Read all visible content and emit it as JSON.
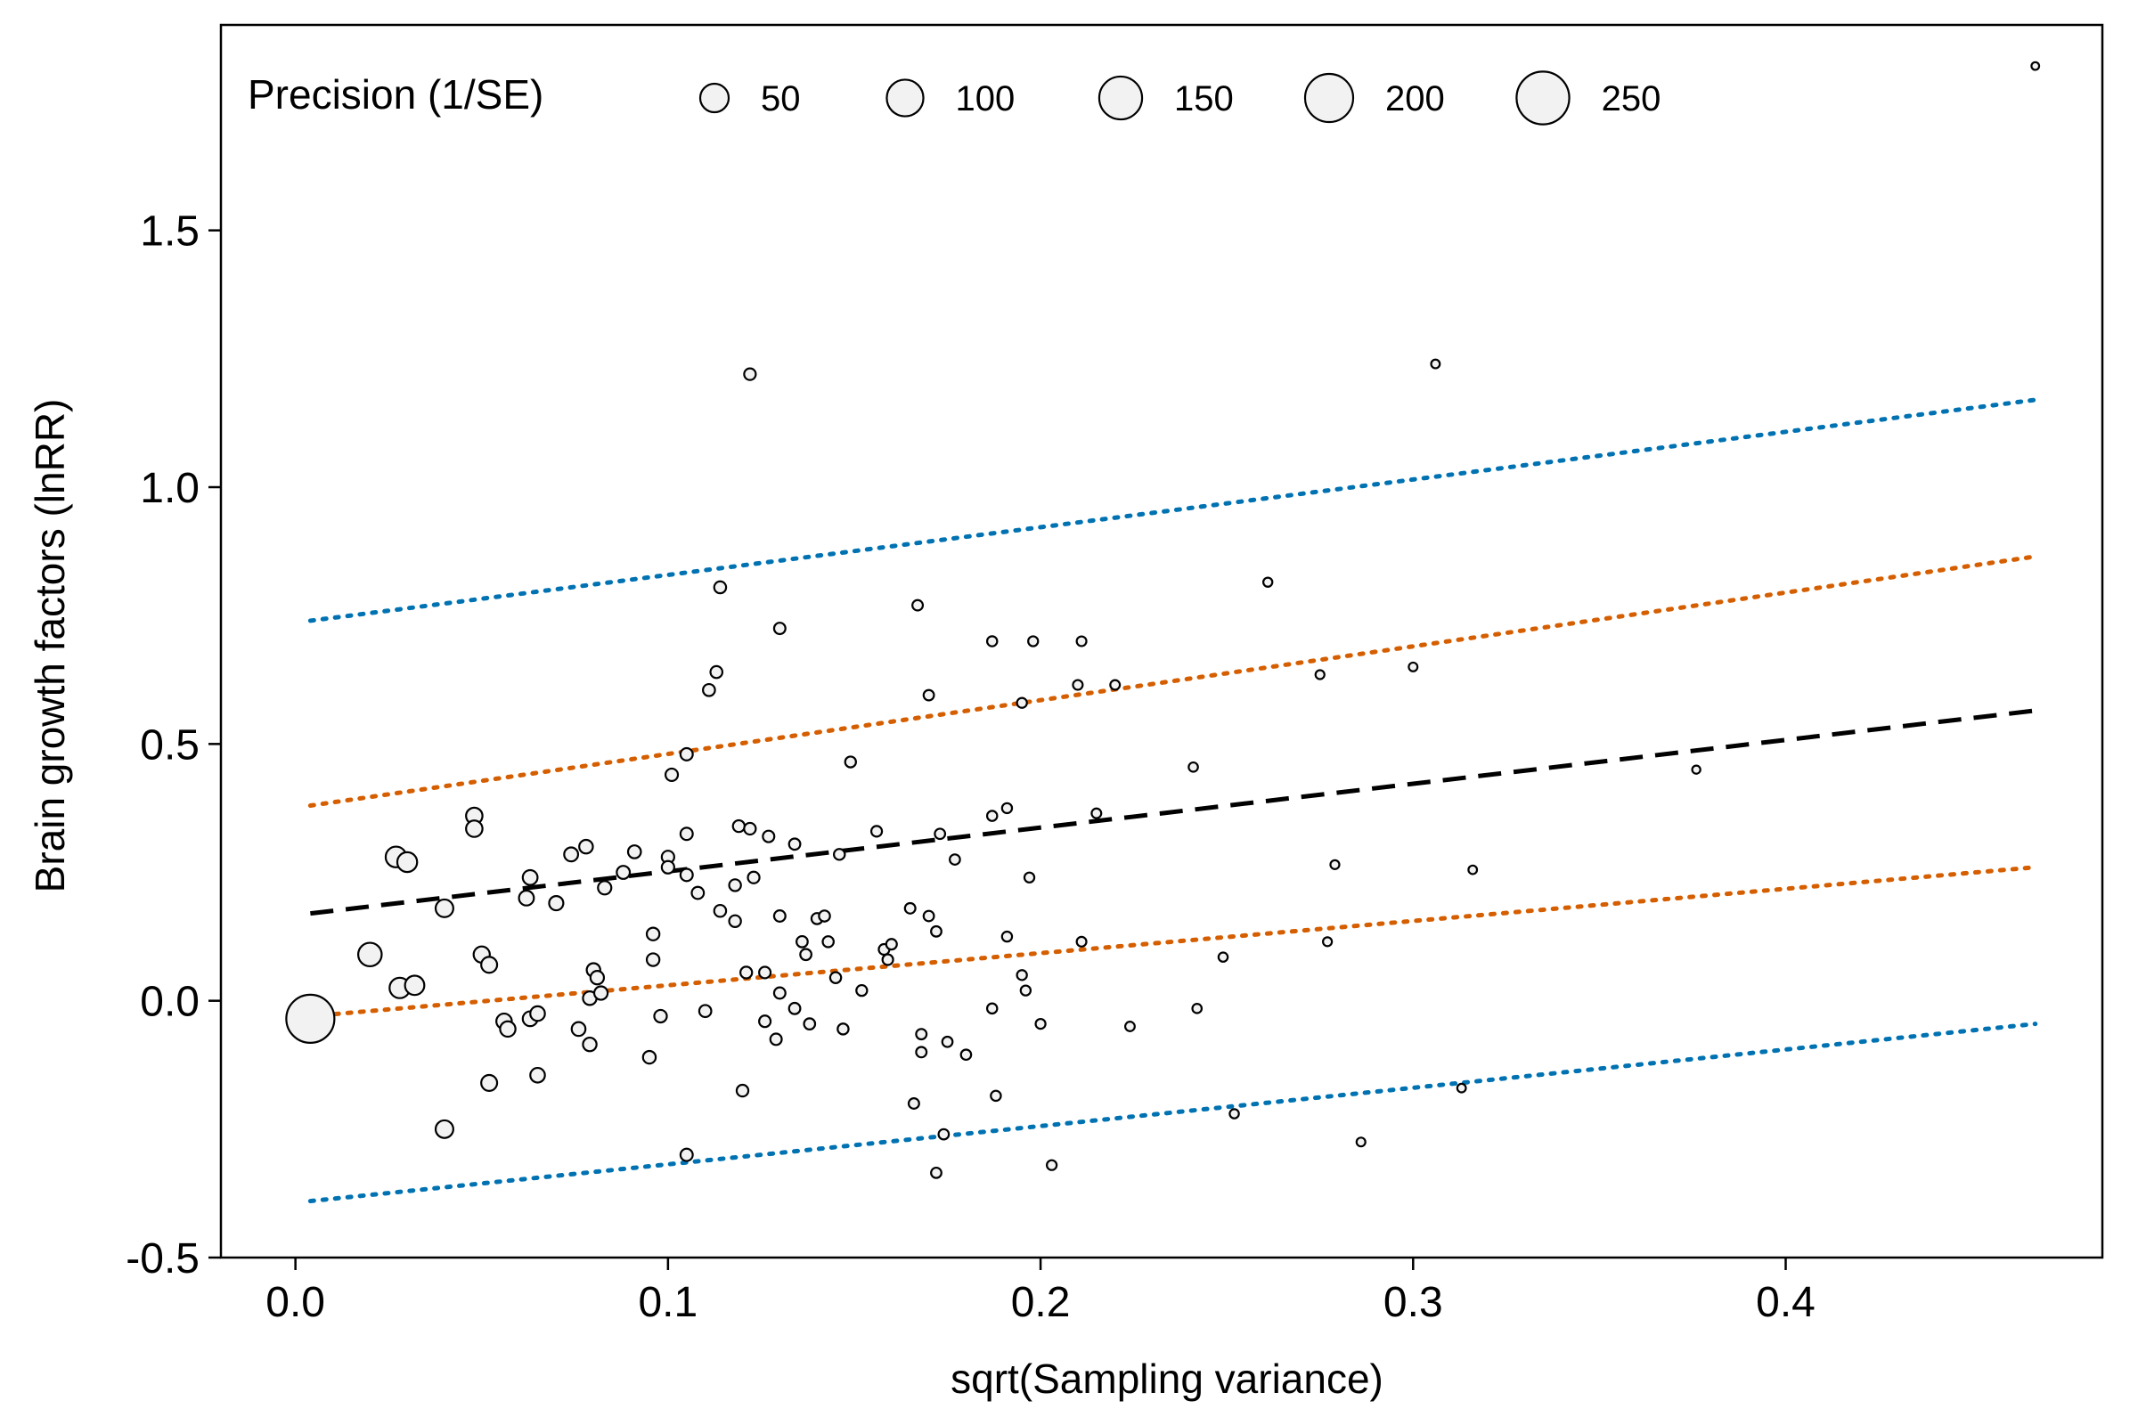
{
  "chart_data": {
    "type": "scatter",
    "title": "",
    "xlabel": "sqrt(Sampling variance)",
    "ylabel": "Brain growth factors (lnRR)",
    "xlim": [
      -0.02,
      0.485
    ],
    "ylim": [
      -0.5,
      1.9
    ],
    "x_ticks": [
      0.0,
      0.1,
      0.2,
      0.3,
      0.4
    ],
    "x_tick_labels": [
      "0.0",
      "0.1",
      "0.2",
      "0.3",
      "0.4"
    ],
    "y_ticks": [
      -0.5,
      0.0,
      0.5,
      1.0,
      1.5
    ],
    "y_tick_labels": [
      "-0.5",
      "0.0",
      "0.5",
      "1.0",
      "1.5"
    ],
    "grid": false,
    "legend": {
      "title": "Precision (1/SE)",
      "placement": "top-left inside",
      "sizes": [
        50,
        100,
        150,
        200,
        250
      ],
      "labels": [
        "50",
        "100",
        "150",
        "200",
        "250"
      ]
    },
    "point_style": {
      "fill": "#f2f2f2",
      "stroke": "#000000"
    },
    "points": [
      {
        "x": 0.004,
        "y": -0.035
      },
      {
        "x": 0.02,
        "y": 0.09
      },
      {
        "x": 0.027,
        "y": 0.28
      },
      {
        "x": 0.03,
        "y": 0.27
      },
      {
        "x": 0.028,
        "y": 0.025
      },
      {
        "x": 0.032,
        "y": 0.03
      },
      {
        "x": 0.04,
        "y": 0.18
      },
      {
        "x": 0.04,
        "y": -0.25
      },
      {
        "x": 0.048,
        "y": 0.36
      },
      {
        "x": 0.048,
        "y": 0.335
      },
      {
        "x": 0.05,
        "y": 0.09
      },
      {
        "x": 0.052,
        "y": 0.07
      },
      {
        "x": 0.052,
        "y": -0.16
      },
      {
        "x": 0.056,
        "y": -0.04
      },
      {
        "x": 0.057,
        "y": -0.055
      },
      {
        "x": 0.062,
        "y": 0.2
      },
      {
        "x": 0.063,
        "y": 0.24
      },
      {
        "x": 0.063,
        "y": -0.035
      },
      {
        "x": 0.065,
        "y": -0.025
      },
      {
        "x": 0.065,
        "y": -0.145
      },
      {
        "x": 0.07,
        "y": 0.19
      },
      {
        "x": 0.074,
        "y": 0.285
      },
      {
        "x": 0.076,
        "y": -0.055
      },
      {
        "x": 0.078,
        "y": 0.3
      },
      {
        "x": 0.079,
        "y": 0.005
      },
      {
        "x": 0.079,
        "y": -0.085
      },
      {
        "x": 0.08,
        "y": 0.06
      },
      {
        "x": 0.081,
        "y": 0.045
      },
      {
        "x": 0.082,
        "y": 0.015
      },
      {
        "x": 0.083,
        "y": 0.22
      },
      {
        "x": 0.088,
        "y": 0.25
      },
      {
        "x": 0.091,
        "y": 0.29
      },
      {
        "x": 0.095,
        "y": -0.11
      },
      {
        "x": 0.096,
        "y": 0.13
      },
      {
        "x": 0.096,
        "y": 0.08
      },
      {
        "x": 0.098,
        "y": -0.03
      },
      {
        "x": 0.1,
        "y": 0.28
      },
      {
        "x": 0.1,
        "y": 0.26
      },
      {
        "x": 0.101,
        "y": 0.44
      },
      {
        "x": 0.105,
        "y": 0.48
      },
      {
        "x": 0.105,
        "y": 0.325
      },
      {
        "x": 0.105,
        "y": 0.245
      },
      {
        "x": 0.105,
        "y": -0.3
      },
      {
        "x": 0.108,
        "y": 0.21
      },
      {
        "x": 0.11,
        "y": -0.02
      },
      {
        "x": 0.111,
        "y": 0.605
      },
      {
        "x": 0.113,
        "y": 0.64
      },
      {
        "x": 0.114,
        "y": 0.805
      },
      {
        "x": 0.114,
        "y": 0.175
      },
      {
        "x": 0.118,
        "y": 0.225
      },
      {
        "x": 0.118,
        "y": 0.155
      },
      {
        "x": 0.119,
        "y": 0.34
      },
      {
        "x": 0.12,
        "y": -0.175
      },
      {
        "x": 0.121,
        "y": 0.055
      },
      {
        "x": 0.122,
        "y": 1.22
      },
      {
        "x": 0.122,
        "y": 0.335
      },
      {
        "x": 0.123,
        "y": 0.24
      },
      {
        "x": 0.126,
        "y": -0.04
      },
      {
        "x": 0.126,
        "y": 0.055
      },
      {
        "x": 0.127,
        "y": 0.32
      },
      {
        "x": 0.129,
        "y": -0.075
      },
      {
        "x": 0.13,
        "y": 0.725
      },
      {
        "x": 0.13,
        "y": 0.165
      },
      {
        "x": 0.13,
        "y": 0.015
      },
      {
        "x": 0.134,
        "y": 0.305
      },
      {
        "x": 0.134,
        "y": -0.015
      },
      {
        "x": 0.136,
        "y": 0.115
      },
      {
        "x": 0.137,
        "y": 0.09
      },
      {
        "x": 0.138,
        "y": -0.045
      },
      {
        "x": 0.14,
        "y": 0.16
      },
      {
        "x": 0.142,
        "y": 0.165
      },
      {
        "x": 0.143,
        "y": 0.115
      },
      {
        "x": 0.145,
        "y": 0.045
      },
      {
        "x": 0.146,
        "y": 0.285
      },
      {
        "x": 0.147,
        "y": -0.055
      },
      {
        "x": 0.149,
        "y": 0.465
      },
      {
        "x": 0.152,
        "y": 0.02
      },
      {
        "x": 0.156,
        "y": 0.33
      },
      {
        "x": 0.158,
        "y": 0.1
      },
      {
        "x": 0.159,
        "y": 0.08
      },
      {
        "x": 0.16,
        "y": 0.11
      },
      {
        "x": 0.165,
        "y": 0.18
      },
      {
        "x": 0.166,
        "y": -0.2
      },
      {
        "x": 0.167,
        "y": 0.77
      },
      {
        "x": 0.168,
        "y": -0.065
      },
      {
        "x": 0.168,
        "y": -0.1
      },
      {
        "x": 0.17,
        "y": 0.595
      },
      {
        "x": 0.17,
        "y": 0.165
      },
      {
        "x": 0.172,
        "y": 0.135
      },
      {
        "x": 0.172,
        "y": -0.335
      },
      {
        "x": 0.173,
        "y": 0.325
      },
      {
        "x": 0.174,
        "y": -0.26
      },
      {
        "x": 0.175,
        "y": -0.08
      },
      {
        "x": 0.177,
        "y": 0.275
      },
      {
        "x": 0.18,
        "y": -0.105
      },
      {
        "x": 0.187,
        "y": 0.7
      },
      {
        "x": 0.187,
        "y": 0.36
      },
      {
        "x": 0.187,
        "y": -0.015
      },
      {
        "x": 0.188,
        "y": -0.185
      },
      {
        "x": 0.191,
        "y": 0.375
      },
      {
        "x": 0.191,
        "y": 0.125
      },
      {
        "x": 0.195,
        "y": 0.58
      },
      {
        "x": 0.195,
        "y": 0.05
      },
      {
        "x": 0.196,
        "y": 0.02
      },
      {
        "x": 0.197,
        "y": 0.24
      },
      {
        "x": 0.198,
        "y": 0.7
      },
      {
        "x": 0.2,
        "y": -0.045
      },
      {
        "x": 0.203,
        "y": -0.32
      },
      {
        "x": 0.21,
        "y": 0.615
      },
      {
        "x": 0.211,
        "y": 0.7
      },
      {
        "x": 0.211,
        "y": 0.115
      },
      {
        "x": 0.215,
        "y": 0.365
      },
      {
        "x": 0.22,
        "y": 0.615
      },
      {
        "x": 0.224,
        "y": -0.05
      },
      {
        "x": 0.241,
        "y": 0.455
      },
      {
        "x": 0.242,
        "y": -0.015
      },
      {
        "x": 0.249,
        "y": 0.085
      },
      {
        "x": 0.252,
        "y": -0.22
      },
      {
        "x": 0.261,
        "y": 0.815
      },
      {
        "x": 0.275,
        "y": 0.635
      },
      {
        "x": 0.277,
        "y": 0.115
      },
      {
        "x": 0.279,
        "y": 0.265
      },
      {
        "x": 0.286,
        "y": -0.275
      },
      {
        "x": 0.3,
        "y": 0.65
      },
      {
        "x": 0.306,
        "y": 1.24
      },
      {
        "x": 0.313,
        "y": -0.17
      },
      {
        "x": 0.316,
        "y": 0.255
      },
      {
        "x": 0.376,
        "y": 0.45
      },
      {
        "x": 0.467,
        "y": 1.82
      }
    ],
    "lines": [
      {
        "role": "regression",
        "color": "#000000",
        "style": "dashed",
        "x": [
          0.004,
          0.467
        ],
        "y": [
          0.17,
          0.565
        ]
      },
      {
        "role": "inner bound upper",
        "color": "#d55e00",
        "style": "dotted",
        "x": [
          0.004,
          0.467
        ],
        "y": [
          0.38,
          0.865
        ]
      },
      {
        "role": "inner bound lower",
        "color": "#d55e00",
        "style": "dotted",
        "x": [
          0.004,
          0.467
        ],
        "y": [
          -0.03,
          0.26
        ]
      },
      {
        "role": "outer bound upper",
        "color": "#0072b2",
        "style": "dotted",
        "x": [
          0.004,
          0.467
        ],
        "y": [
          0.74,
          1.17
        ]
      },
      {
        "role": "outer bound lower",
        "color": "#0072b2",
        "style": "dotted",
        "x": [
          0.004,
          0.467
        ],
        "y": [
          -0.39,
          -0.045
        ]
      }
    ]
  }
}
